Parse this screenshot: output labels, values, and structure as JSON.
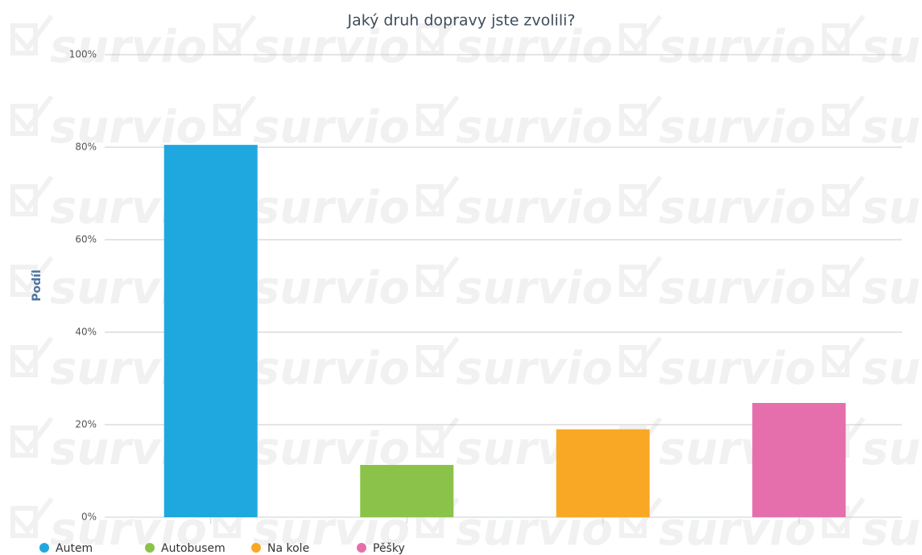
{
  "chart_data": {
    "type": "bar",
    "title": "Jaký druh dopravy jste zvolili?",
    "y_label": "Podíl",
    "watermark": "survio",
    "categories": [
      "Autem",
      "Autobusem",
      "Na kole",
      "Pěšky"
    ],
    "values": [
      80.5,
      11.3,
      19.0,
      24.7
    ],
    "colors": [
      "#1fa8e0",
      "#8bc34a",
      "#f9a825",
      "#e56fac"
    ],
    "ylim": [
      0,
      100
    ],
    "yticks": [
      {
        "value": 0,
        "label": "0%"
      },
      {
        "value": 20,
        "label": "20%"
      },
      {
        "value": 40,
        "label": "40%"
      },
      {
        "value": 60,
        "label": "60%"
      },
      {
        "value": 80,
        "label": "80%"
      },
      {
        "value": 100,
        "label": "100%"
      }
    ],
    "grid": true,
    "legend": "bottom-left"
  }
}
